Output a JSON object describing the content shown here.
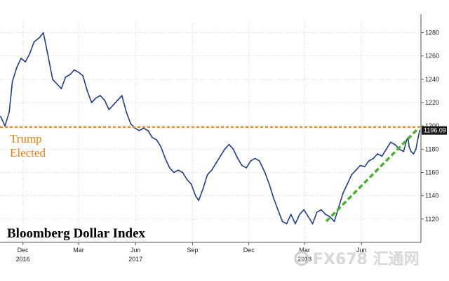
{
  "chart_data": {
    "type": "line",
    "title": "Bloomberg Dollar Index",
    "xlabel": "",
    "ylabel": "",
    "ylim": [
      1100,
      1290
    ],
    "y_ticks": [
      1120,
      1140,
      1160,
      1180,
      1200,
      1220,
      1240,
      1260,
      1280
    ],
    "x_range": [
      "2016-10-25",
      "2018-09-05"
    ],
    "x_ticks": [
      {
        "date": "2016-12-01",
        "label": "Dec",
        "year": "2016"
      },
      {
        "date": "2017-03-01",
        "label": "Mar",
        "year": ""
      },
      {
        "date": "2017-06-01",
        "label": "Jun",
        "year": "2017"
      },
      {
        "date": "2017-09-01",
        "label": "Sep",
        "year": ""
      },
      {
        "date": "2017-12-01",
        "label": "Dec",
        "year": ""
      },
      {
        "date": "2018-03-01",
        "label": "Mar",
        "year": "2018"
      },
      {
        "date": "2018-06-01",
        "label": "Jun",
        "year": ""
      }
    ],
    "series": [
      {
        "color": "#1f3f8a",
        "points": [
          [
            "2016-10-26",
            1208
          ],
          [
            "2016-11-02",
            1200
          ],
          [
            "2016-11-09",
            1212
          ],
          [
            "2016-11-14",
            1238
          ],
          [
            "2016-11-21",
            1250
          ],
          [
            "2016-11-28",
            1258
          ],
          [
            "2016-12-05",
            1255
          ],
          [
            "2016-12-12",
            1262
          ],
          [
            "2016-12-19",
            1272
          ],
          [
            "2016-12-28",
            1276
          ],
          [
            "2017-01-03",
            1280
          ],
          [
            "2017-01-10",
            1262
          ],
          [
            "2017-01-18",
            1240
          ],
          [
            "2017-01-25",
            1236
          ],
          [
            "2017-02-01",
            1232
          ],
          [
            "2017-02-08",
            1242
          ],
          [
            "2017-02-15",
            1244
          ],
          [
            "2017-02-22",
            1248
          ],
          [
            "2017-03-01",
            1246
          ],
          [
            "2017-03-08",
            1243
          ],
          [
            "2017-03-15",
            1230
          ],
          [
            "2017-03-22",
            1220
          ],
          [
            "2017-03-29",
            1224
          ],
          [
            "2017-04-05",
            1226
          ],
          [
            "2017-04-12",
            1222
          ],
          [
            "2017-04-19",
            1214
          ],
          [
            "2017-04-26",
            1218
          ],
          [
            "2017-05-03",
            1222
          ],
          [
            "2017-05-10",
            1226
          ],
          [
            "2017-05-17",
            1212
          ],
          [
            "2017-05-24",
            1202
          ],
          [
            "2017-05-31",
            1198
          ],
          [
            "2017-06-07",
            1196
          ],
          [
            "2017-06-14",
            1198
          ],
          [
            "2017-06-21",
            1196
          ],
          [
            "2017-06-28",
            1190
          ],
          [
            "2017-07-05",
            1188
          ],
          [
            "2017-07-12",
            1182
          ],
          [
            "2017-07-19",
            1172
          ],
          [
            "2017-07-26",
            1164
          ],
          [
            "2017-08-02",
            1160
          ],
          [
            "2017-08-09",
            1162
          ],
          [
            "2017-08-16",
            1160
          ],
          [
            "2017-08-23",
            1154
          ],
          [
            "2017-08-30",
            1150
          ],
          [
            "2017-09-06",
            1140
          ],
          [
            "2017-09-11",
            1136
          ],
          [
            "2017-09-18",
            1146
          ],
          [
            "2017-09-25",
            1158
          ],
          [
            "2017-10-02",
            1162
          ],
          [
            "2017-10-09",
            1168
          ],
          [
            "2017-10-16",
            1174
          ],
          [
            "2017-10-23",
            1180
          ],
          [
            "2017-10-30",
            1184
          ],
          [
            "2017-11-06",
            1180
          ],
          [
            "2017-11-13",
            1172
          ],
          [
            "2017-11-20",
            1166
          ],
          [
            "2017-11-27",
            1164
          ],
          [
            "2017-12-04",
            1170
          ],
          [
            "2017-12-11",
            1172
          ],
          [
            "2017-12-18",
            1170
          ],
          [
            "2017-12-27",
            1160
          ],
          [
            "2018-01-03",
            1150
          ],
          [
            "2018-01-10",
            1138
          ],
          [
            "2018-01-17",
            1128
          ],
          [
            "2018-01-24",
            1118
          ],
          [
            "2018-01-31",
            1116
          ],
          [
            "2018-02-07",
            1124
          ],
          [
            "2018-02-14",
            1116
          ],
          [
            "2018-02-21",
            1124
          ],
          [
            "2018-02-28",
            1128
          ],
          [
            "2018-03-07",
            1122
          ],
          [
            "2018-03-14",
            1116
          ],
          [
            "2018-03-21",
            1126
          ],
          [
            "2018-03-28",
            1128
          ],
          [
            "2018-04-04",
            1124
          ],
          [
            "2018-04-11",
            1122
          ],
          [
            "2018-04-18",
            1118
          ],
          [
            "2018-04-25",
            1130
          ],
          [
            "2018-05-02",
            1142
          ],
          [
            "2018-05-09",
            1150
          ],
          [
            "2018-05-16",
            1158
          ],
          [
            "2018-05-23",
            1162
          ],
          [
            "2018-05-30",
            1166
          ],
          [
            "2018-06-06",
            1165
          ],
          [
            "2018-06-13",
            1170
          ],
          [
            "2018-06-20",
            1172
          ],
          [
            "2018-06-27",
            1176
          ],
          [
            "2018-07-04",
            1174
          ],
          [
            "2018-07-11",
            1180
          ],
          [
            "2018-07-18",
            1186
          ],
          [
            "2018-07-25",
            1184
          ],
          [
            "2018-08-01",
            1180
          ],
          [
            "2018-08-08",
            1178
          ],
          [
            "2018-08-13",
            1188
          ],
          [
            "2018-08-15",
            1190
          ],
          [
            "2018-08-17",
            1182
          ],
          [
            "2018-08-20",
            1178
          ],
          [
            "2018-08-24",
            1176
          ],
          [
            "2018-08-28",
            1180
          ],
          [
            "2018-08-30",
            1186
          ],
          [
            "2018-09-03",
            1196.09
          ]
        ]
      }
    ],
    "reference_line": {
      "y": 1199,
      "color": "#f0891e"
    },
    "trend_line": {
      "from": [
        "2018-04-05",
        1118
      ],
      "to": [
        "2018-09-01",
        1198
      ],
      "color": "#4caf34"
    },
    "last_value": {
      "label": "1196.09",
      "y": 1196.09
    },
    "annotation": {
      "lines": [
        "Trump",
        "Elected"
      ],
      "color": "#f07f12"
    },
    "grid": true,
    "legend": "none"
  },
  "watermark": {
    "text": "FX678 汇通网",
    "logo": "target-icon"
  }
}
